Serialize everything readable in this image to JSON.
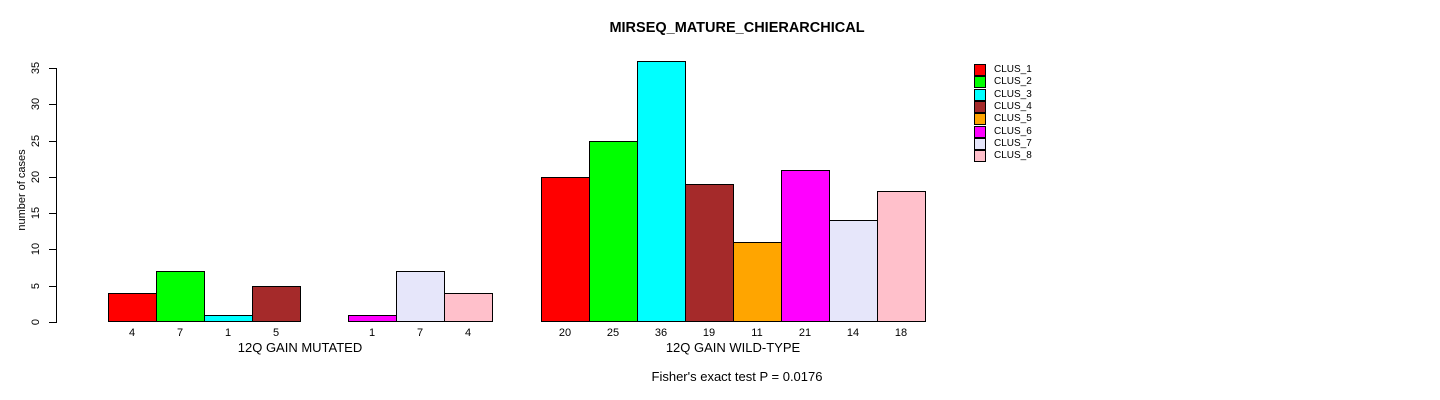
{
  "chart_data": {
    "type": "bar",
    "title": "MIRSEQ_MATURE_CHIERARCHICAL",
    "ylabel": "number of cases",
    "xlabel": "",
    "ylim": [
      0,
      35
    ],
    "yticks": [
      0,
      5,
      10,
      15,
      20,
      25,
      30,
      35
    ],
    "grid": false,
    "legend_position": "right-outside",
    "categories": [
      "12Q GAIN MUTATED",
      "12Q GAIN WILD-TYPE"
    ],
    "series": [
      {
        "name": "CLUS_1",
        "color": "#FF0000",
        "values": [
          4,
          20
        ]
      },
      {
        "name": "CLUS_2",
        "color": "#00FF00",
        "values": [
          7,
          25
        ]
      },
      {
        "name": "CLUS_3",
        "color": "#00FFFF",
        "values": [
          1,
          36
        ]
      },
      {
        "name": "CLUS_4",
        "color": "#A52A2A",
        "values": [
          5,
          19
        ]
      },
      {
        "name": "CLUS_5",
        "color": "#FFA500",
        "values": [
          0,
          11
        ]
      },
      {
        "name": "CLUS_6",
        "color": "#FF00FF",
        "values": [
          1,
          21
        ]
      },
      {
        "name": "CLUS_7",
        "color": "#E6E6FA",
        "values": [
          7,
          14
        ]
      },
      {
        "name": "CLUS_8",
        "color": "#FFC0CB",
        "values": [
          4,
          18
        ]
      }
    ],
    "bar_value_labels_shown": true,
    "zero_values_unlabeled": true,
    "annotation": "Fisher's exact test P = 0.0176"
  }
}
